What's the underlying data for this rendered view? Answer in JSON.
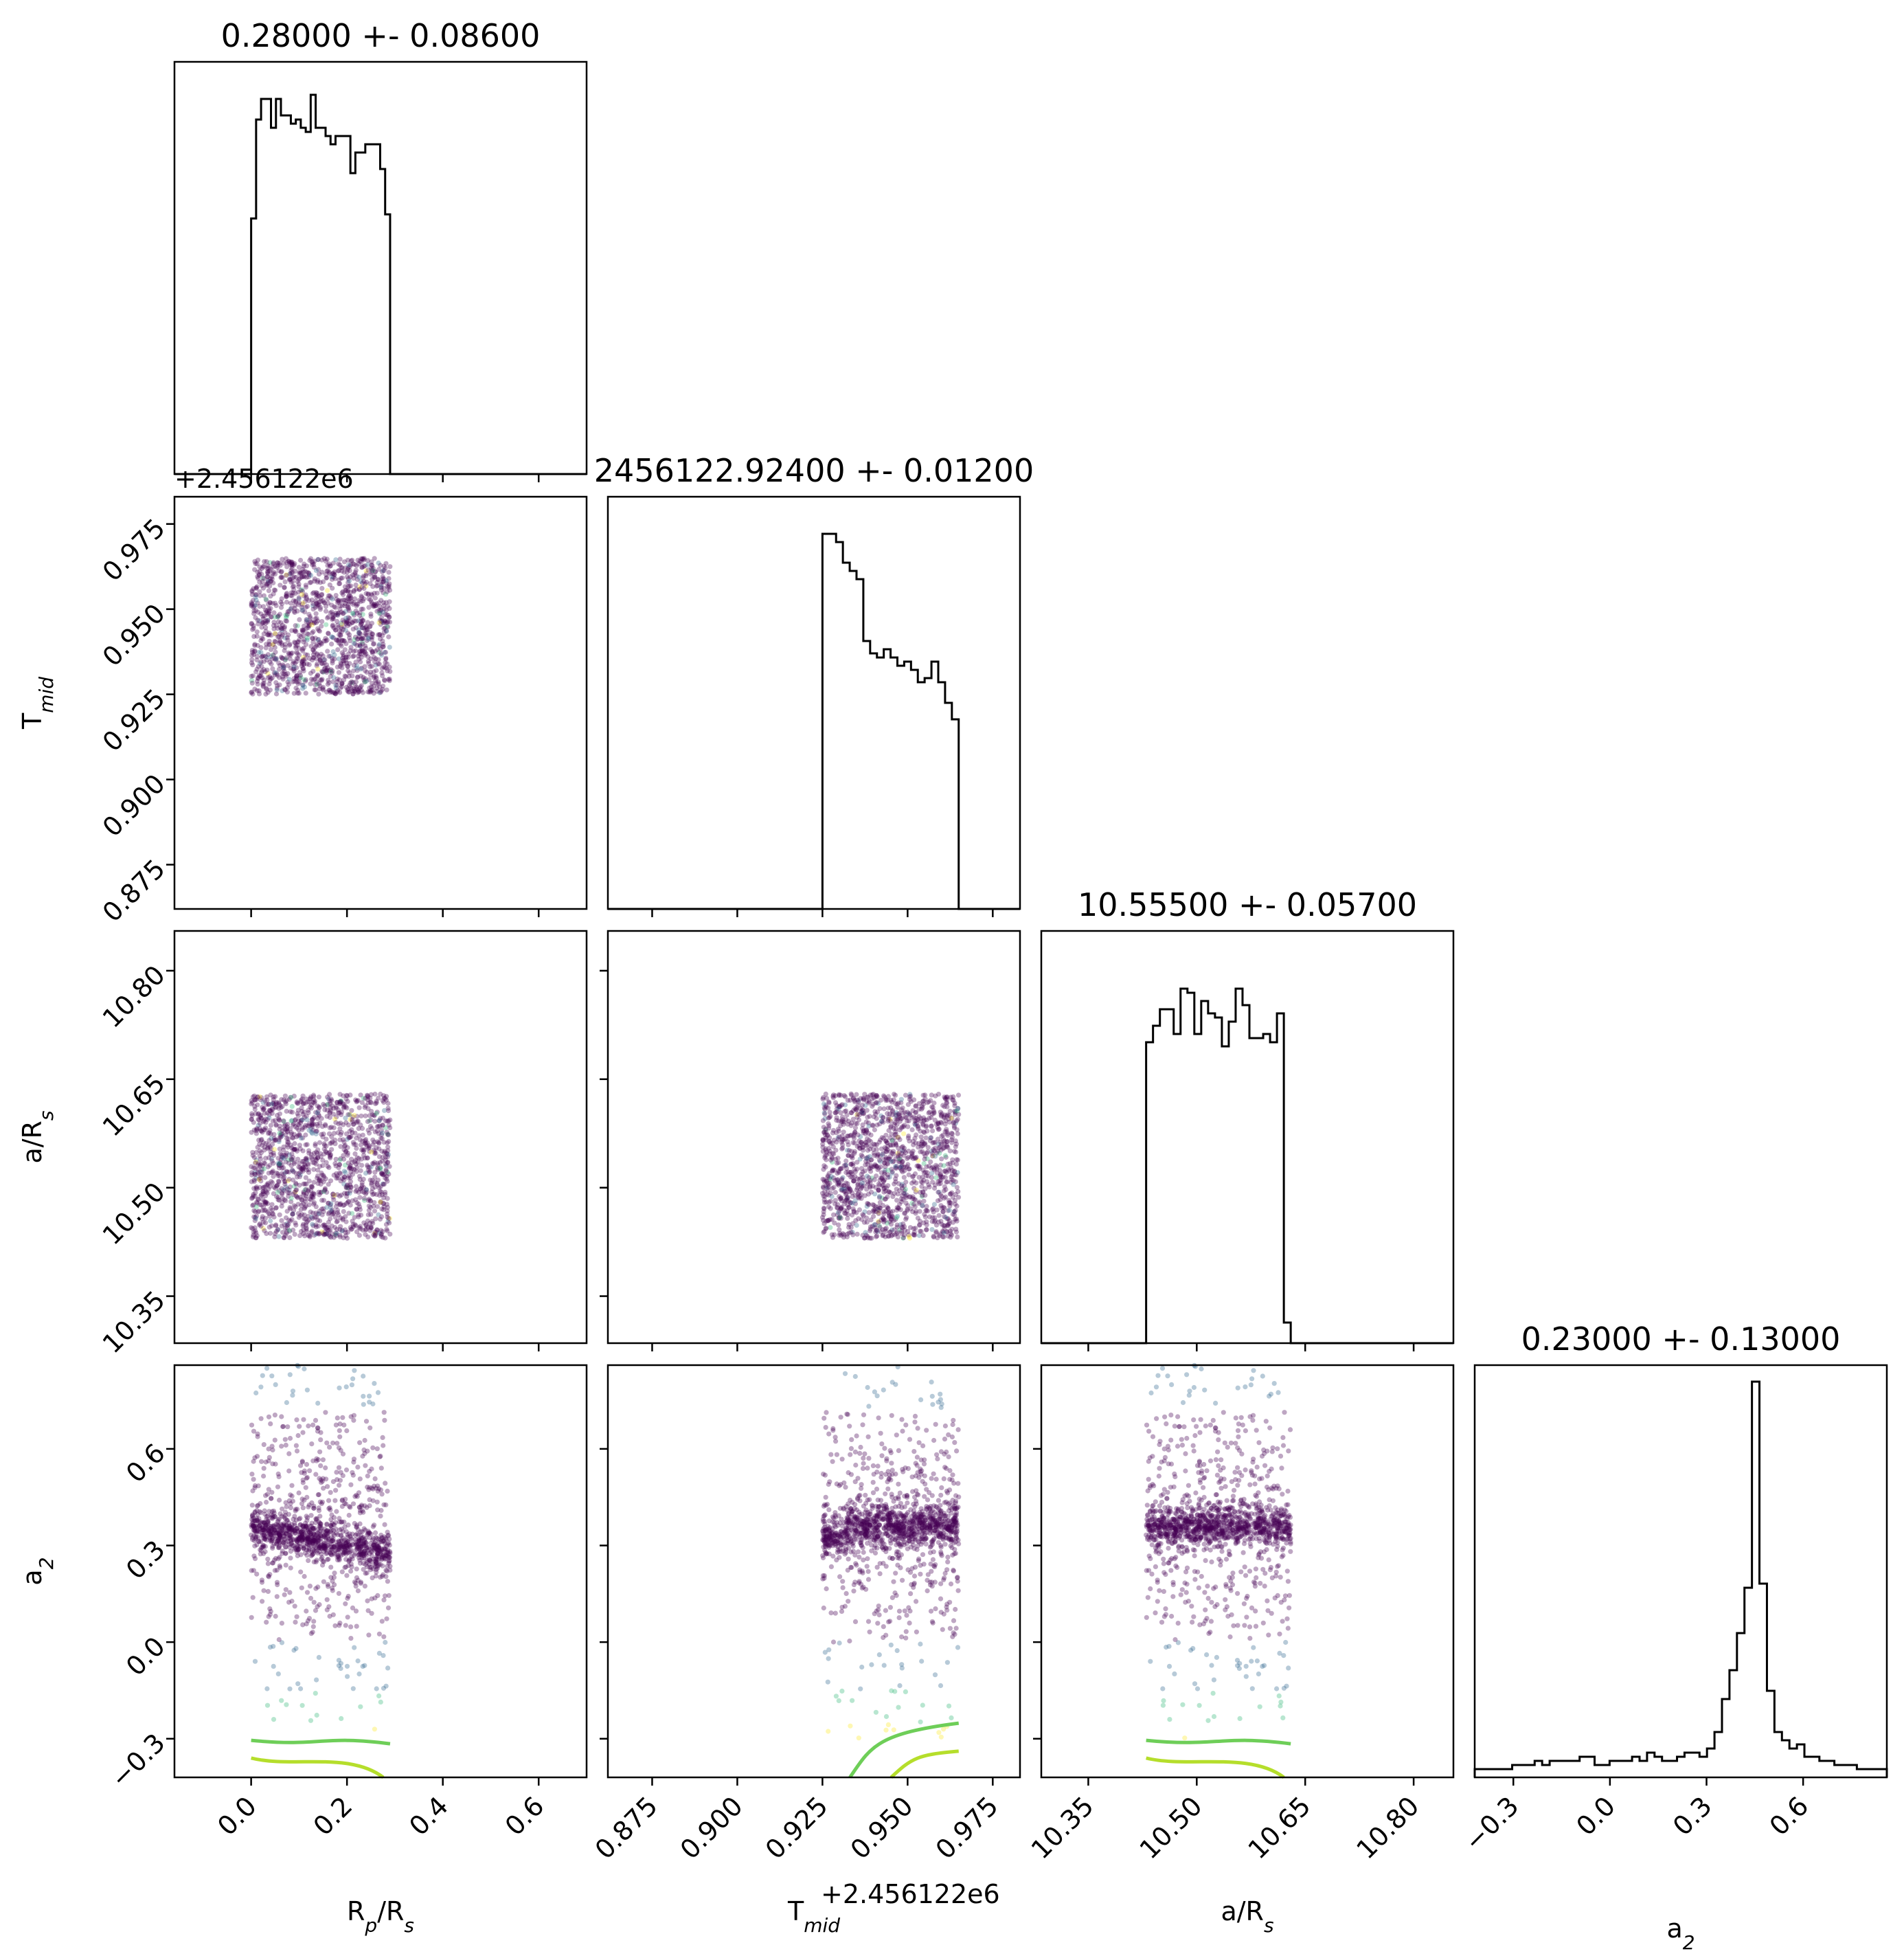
{
  "chart_data": {
    "type": "corner",
    "colors": {
      "line": "#000000",
      "low": "#440154",
      "mid": "#31688e",
      "teal": "#35b779",
      "green": "#6ece58",
      "lime": "#b5de2b",
      "yellow": "#fde725"
    },
    "params": [
      {
        "key": "rp",
        "title": "0.28000 +- 0.08600",
        "xlabel": "R",
        "xlabel_sub": "p",
        "xlabel_rest": "/R",
        "xlabel_sub2": "s",
        "ylabel": "",
        "range": [
          -0.16,
          0.7
        ],
        "ticks": [
          "0.0",
          "0.2",
          "0.4",
          "0.6"
        ],
        "tickvals": [
          0.0,
          0.2,
          0.4,
          0.6
        ],
        "sample_range": [
          0.0,
          0.29
        ]
      },
      {
        "key": "tmid",
        "title": "2456122.92400 +- 0.01200",
        "xlabel": "T",
        "xlabel_sub": "mid",
        "ylabel": "T",
        "ylabel_sub": "mid",
        "offset": "+2.456122e6",
        "range": [
          0.862,
          0.983
        ],
        "ticks": [
          "0.875",
          "0.900",
          "0.925",
          "0.950",
          "0.975"
        ],
        "tickvals": [
          0.875,
          0.9,
          0.925,
          0.95,
          0.975
        ],
        "sample_range": [
          0.925,
          0.965
        ]
      },
      {
        "key": "ars",
        "title": "10.55500 +- 0.05700",
        "xlabel": "a/R",
        "xlabel_sub": "s",
        "ylabel": "a/R",
        "ylabel_sub": "s",
        "range": [
          10.285,
          10.855
        ],
        "ticks": [
          "10.35",
          "10.50",
          "10.65",
          "10.80"
        ],
        "tickvals": [
          10.35,
          10.5,
          10.65,
          10.8
        ],
        "sample_range": [
          10.43,
          10.63
        ]
      },
      {
        "key": "a2",
        "title": "0.23000 +- 0.13000",
        "xlabel": "a",
        "xlabel_sub": "2",
        "ylabel": "a",
        "ylabel_sub": "2",
        "range": [
          -0.42,
          0.86
        ],
        "ticks": [
          "−0.3",
          "0.0",
          "0.3",
          "0.6"
        ],
        "tickvals": [
          -0.3,
          0.0,
          0.3,
          0.6
        ]
      }
    ],
    "histograms": {
      "rp": {
        "x0": 0.0,
        "x1": 0.29,
        "counts": [
          0.62,
          0.86,
          0.91,
          0.91,
          0.84,
          0.91,
          0.87,
          0.87,
          0.85,
          0.86,
          0.84,
          0.83,
          0.92,
          0.84,
          0.84,
          0.82,
          0.8,
          0.82,
          0.82,
          0.82,
          0.73,
          0.78,
          0.78,
          0.8,
          0.8,
          0.8,
          0.74,
          0.63
        ]
      },
      "tmid": {
        "x0": 0.925,
        "x1": 0.965,
        "counts": [
          0.91,
          0.91,
          0.89,
          0.84,
          0.82,
          0.8,
          0.65,
          0.62,
          0.61,
          0.63,
          0.61,
          0.59,
          0.6,
          0.58,
          0.55,
          0.56,
          0.6,
          0.55,
          0.5,
          0.46
        ]
      },
      "ars": {
        "x0": 10.43,
        "x1": 10.63,
        "counts": [
          0.73,
          0.77,
          0.81,
          0.81,
          0.75,
          0.86,
          0.85,
          0.75,
          0.83,
          0.8,
          0.79,
          0.72,
          0.78,
          0.86,
          0.82,
          0.74,
          0.74,
          0.75,
          0.73,
          0.8,
          0.05
        ]
      },
      "a2": {
        "x0": -0.42,
        "x1": 0.86,
        "counts": [
          0.02,
          0.02,
          0.02,
          0.02,
          0.02,
          0.03,
          0.03,
          0.03,
          0.04,
          0.03,
          0.04,
          0.04,
          0.04,
          0.04,
          0.05,
          0.05,
          0.03,
          0.03,
          0.04,
          0.04,
          0.04,
          0.05,
          0.04,
          0.06,
          0.05,
          0.04,
          0.04,
          0.05,
          0.06,
          0.06,
          0.05,
          0.07,
          0.11,
          0.19,
          0.26,
          0.35,
          0.46,
          0.96,
          0.47,
          0.21,
          0.11,
          0.09,
          0.07,
          0.08,
          0.05,
          0.05,
          0.04,
          0.04,
          0.03,
          0.03,
          0.03,
          0.02,
          0.02,
          0.02,
          0.02
        ]
      }
    }
  }
}
